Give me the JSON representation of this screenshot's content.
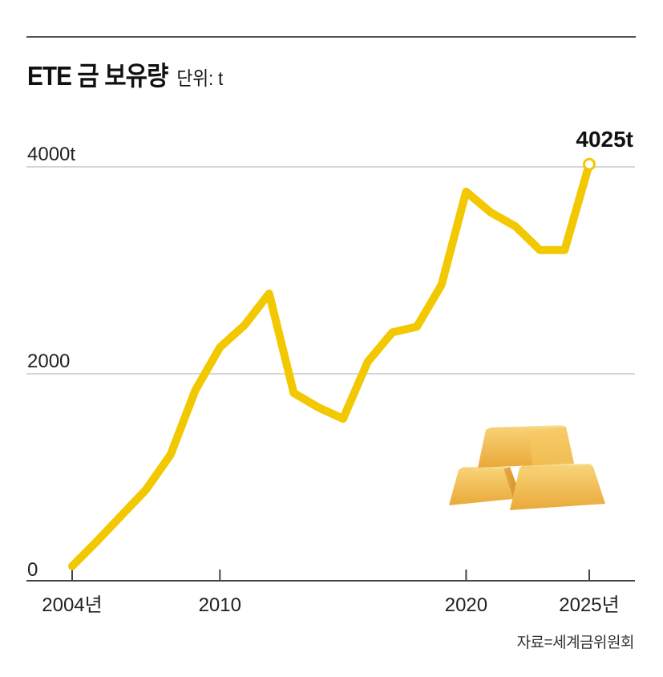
{
  "header": {
    "title": "ETE 금 보유량",
    "unit": "단위: t"
  },
  "source": "자료=세계금위원회",
  "colors": {
    "line": "#F2C800",
    "grid": "#d6d6d6",
    "axis": "#444444",
    "rule": "#555555"
  },
  "illustration": "gold-bars",
  "chart_data": {
    "type": "line",
    "title": "ETE 금 보유량",
    "subtitle": "단위: t",
    "xlabel": "",
    "ylabel": "",
    "x": [
      2004,
      2005,
      2006,
      2007,
      2008,
      2009,
      2010,
      2011,
      2012,
      2013,
      2014,
      2015,
      2016,
      2017,
      2018,
      2019,
      2020,
      2021,
      2022,
      2023,
      2024,
      2025
    ],
    "series": [
      {
        "name": "ETE 금 보유량",
        "values": [
          140,
          380,
          630,
          880,
          1220,
          1840,
          2255,
          2470,
          2775,
          1815,
          1675,
          1565,
          2115,
          2400,
          2455,
          2860,
          3760,
          3560,
          3425,
          3195,
          3195,
          4025
        ]
      }
    ],
    "xticks": [
      "2004년",
      "2010",
      "2020",
      "2025년"
    ],
    "xtick_years": [
      2004,
      2010,
      2020,
      2025
    ],
    "yticks": [
      "0",
      "2000",
      "4000t"
    ],
    "ytick_values": [
      0,
      2000,
      4000
    ],
    "ylim": [
      0,
      4100
    ],
    "grid": true,
    "annotations": [
      {
        "x": 2025,
        "y": 4025,
        "text": "4025t"
      }
    ],
    "source": "자료=세계금위원회"
  }
}
